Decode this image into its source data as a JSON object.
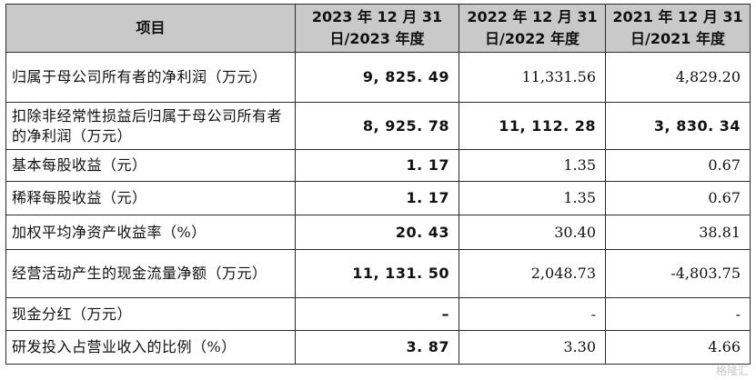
{
  "table": {
    "headers": [
      "项目",
      "2023 年 12 月 31 日/2023 年度",
      "2022 年 12 月 31 日/2022 年度",
      "2021 年 12 月 31 日/2021 年度"
    ],
    "rows": [
      {
        "item": "归属于母公司所有者的净利润（万元）",
        "v2023": "9, 825. 49",
        "v2022": "11,331.56",
        "v2021": "4,829.20"
      },
      {
        "item": "扣除非经常性损益后归属于母公司所有者的净利润（万元）",
        "v2023": "8, 925. 78",
        "v2022": "11, 112. 28",
        "v2021": "3, 830. 34"
      },
      {
        "item": "基本每股收益（元）",
        "v2023": "1. 17",
        "v2022": "1.35",
        "v2021": "0.67"
      },
      {
        "item": "稀释每股收益（元）",
        "v2023": "1. 17",
        "v2022": "1.35",
        "v2021": "0.67"
      },
      {
        "item": "加权平均净资产收益率（%）",
        "v2023": "20. 43",
        "v2022": "30.40",
        "v2021": "38.81"
      },
      {
        "item": "经营活动产生的现金流量净额（万元）",
        "v2023": "11, 131. 50",
        "v2022": "2,048.73",
        "v2021": "-4,803.75"
      },
      {
        "item": "现金分红（万元）",
        "v2023": "–",
        "v2022": "-",
        "v2021": "-"
      },
      {
        "item": "研发投入占营业收入的比例（%）",
        "v2023": "3. 87",
        "v2022": "3.30",
        "v2021": "4.66"
      }
    ]
  },
  "watermark": "格隆汇"
}
